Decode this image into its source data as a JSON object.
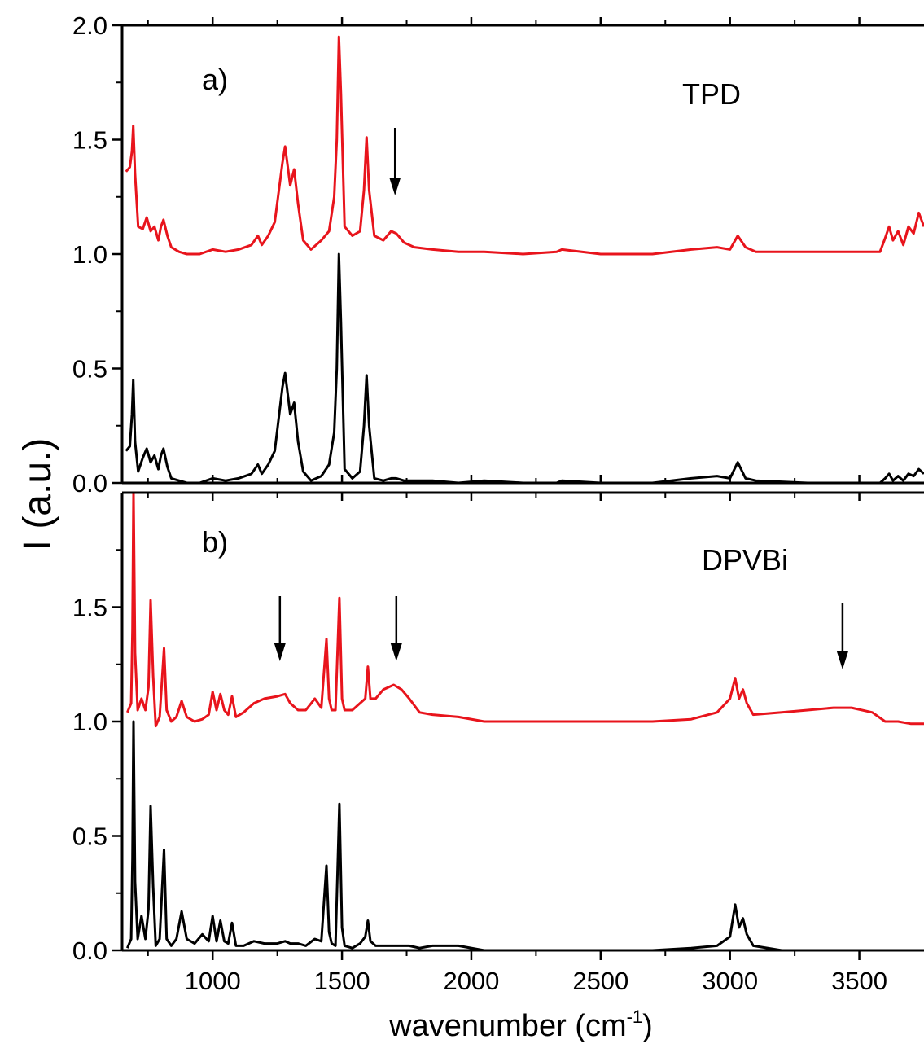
{
  "chart_data": {
    "type": "line",
    "xlabel": "wavenumber (cm⁻¹)",
    "xlabel_main": "wavenumber (cm",
    "xlabel_sup": "-1",
    "xlabel_close": ")",
    "ylabel": "I (a.u.)",
    "xlim": [
      650,
      3750
    ],
    "xticks": [
      1000,
      1500,
      2000,
      2500,
      3000,
      3500
    ],
    "xtick_labels": [
      "1000",
      "1500",
      "2000",
      "2500",
      "3000",
      "3500"
    ],
    "colors": {
      "red": "#e8141c",
      "black": "#000000"
    },
    "panels": [
      {
        "label": "a)",
        "name": "TPD",
        "ylim": [
          0,
          2.0
        ],
        "yticks": [
          0.0,
          0.5,
          1.0,
          1.5,
          2.0
        ],
        "ytick_labels": [
          "0.0",
          "0.5",
          "1.0",
          "1.5",
          "2.0"
        ],
        "arrows": [
          1705
        ],
        "series": [
          {
            "color": "red",
            "x": [
              665,
              680,
              688,
              693,
              700,
              712,
              730,
              745,
              760,
              775,
              790,
              800,
              810,
              825,
              840,
              870,
              900,
              950,
              1000,
              1050,
              1100,
              1150,
              1175,
              1190,
              1215,
              1240,
              1270,
              1280,
              1300,
              1315,
              1330,
              1350,
              1380,
              1420,
              1450,
              1470,
              1480,
              1488,
              1496,
              1510,
              1540,
              1570,
              1585,
              1595,
              1605,
              1625,
              1660,
              1690,
              1710,
              1740,
              1780,
              1850,
              1950,
              2050,
              2200,
              2330,
              2350,
              2500,
              2700,
              2850,
              2950,
              3000,
              3030,
              3060,
              3100,
              3300,
              3500,
              3580,
              3600,
              3615,
              3630,
              3650,
              3670,
              3690,
              3710,
              3730,
              3750
            ],
            "y": [
              1.36,
              1.38,
              1.45,
              1.56,
              1.35,
              1.12,
              1.11,
              1.16,
              1.1,
              1.12,
              1.06,
              1.12,
              1.15,
              1.08,
              1.03,
              1.01,
              1.0,
              1.0,
              1.02,
              1.01,
              1.02,
              1.04,
              1.08,
              1.04,
              1.08,
              1.14,
              1.4,
              1.47,
              1.3,
              1.37,
              1.22,
              1.06,
              1.02,
              1.06,
              1.1,
              1.25,
              1.5,
              1.95,
              1.7,
              1.12,
              1.08,
              1.1,
              1.28,
              1.51,
              1.28,
              1.08,
              1.06,
              1.1,
              1.09,
              1.05,
              1.03,
              1.02,
              1.01,
              1.01,
              1.0,
              1.01,
              1.02,
              1.0,
              1.0,
              1.02,
              1.03,
              1.02,
              1.08,
              1.03,
              1.01,
              1.01,
              1.01,
              1.01,
              1.07,
              1.12,
              1.06,
              1.1,
              1.04,
              1.12,
              1.09,
              1.18,
              1.12
            ]
          },
          {
            "color": "black",
            "x": [
              665,
              680,
              688,
              693,
              700,
              712,
              730,
              745,
              760,
              775,
              790,
              800,
              810,
              825,
              840,
              870,
              900,
              950,
              1000,
              1050,
              1100,
              1150,
              1175,
              1190,
              1215,
              1240,
              1270,
              1280,
              1300,
              1315,
              1330,
              1350,
              1380,
              1420,
              1450,
              1470,
              1480,
              1488,
              1496,
              1510,
              1540,
              1570,
              1585,
              1595,
              1605,
              1625,
              1660,
              1690,
              1710,
              1740,
              1780,
              1850,
              1950,
              2050,
              2200,
              2330,
              2350,
              2500,
              2700,
              2850,
              2950,
              3000,
              3030,
              3060,
              3100,
              3300,
              3500,
              3580,
              3600,
              3615,
              3630,
              3650,
              3670,
              3690,
              3710,
              3730,
              3750
            ],
            "y": [
              0.14,
              0.16,
              0.3,
              0.45,
              0.18,
              0.05,
              0.11,
              0.15,
              0.09,
              0.12,
              0.06,
              0.12,
              0.15,
              0.07,
              0.02,
              0.01,
              0.0,
              0.0,
              0.02,
              0.01,
              0.02,
              0.04,
              0.08,
              0.04,
              0.08,
              0.14,
              0.42,
              0.48,
              0.3,
              0.35,
              0.18,
              0.05,
              0.01,
              0.03,
              0.08,
              0.22,
              0.5,
              1.0,
              0.7,
              0.06,
              0.02,
              0.05,
              0.25,
              0.47,
              0.25,
              0.02,
              0.01,
              0.02,
              0.02,
              0.01,
              0.01,
              0.01,
              0.0,
              0.01,
              0.0,
              0.0,
              0.01,
              0.0,
              0.0,
              0.02,
              0.03,
              0.02,
              0.09,
              0.02,
              0.01,
              0.0,
              0.0,
              0.0,
              0.02,
              0.04,
              0.01,
              0.03,
              0.01,
              0.04,
              0.03,
              0.06,
              0.04
            ]
          }
        ]
      },
      {
        "label": "b)",
        "name": "DPVBi",
        "ylim": [
          0,
          2.0
        ],
        "yticks": [
          0.0,
          0.5,
          1.0,
          1.5
        ],
        "ytick_labels": [
          "0.0",
          "0.5",
          "1.0",
          "1.5"
        ],
        "arrows": [
          1260,
          1710,
          3435
        ],
        "series": [
          {
            "color": "red",
            "x": [
              670,
              685,
              690,
              694,
              700,
              710,
              725,
              740,
              752,
              760,
              770,
              780,
              795,
              812,
              822,
              840,
              860,
              880,
              900,
              930,
              960,
              985,
              1000,
              1015,
              1030,
              1045,
              1060,
              1075,
              1090,
              1120,
              1160,
              1200,
              1250,
              1280,
              1300,
              1330,
              1360,
              1395,
              1420,
              1440,
              1450,
              1460,
              1475,
              1490,
              1500,
              1510,
              1540,
              1570,
              1590,
              1600,
              1610,
              1630,
              1660,
              1700,
              1730,
              1760,
              1800,
              1850,
              1950,
              2050,
              2300,
              2500,
              2700,
              2850,
              2950,
              3000,
              3020,
              3035,
              3050,
              3065,
              3090,
              3200,
              3300,
              3400,
              3470,
              3550,
              3600,
              3650,
              3700,
              3750
            ],
            "y": [
              1.04,
              1.08,
              1.4,
              2.0,
              1.3,
              1.05,
              1.1,
              1.05,
              1.15,
              1.53,
              1.2,
              0.98,
              1.02,
              1.32,
              1.05,
              1.0,
              1.02,
              1.09,
              1.02,
              1.0,
              1.01,
              1.03,
              1.13,
              1.05,
              1.12,
              1.05,
              1.03,
              1.11,
              1.02,
              1.04,
              1.08,
              1.1,
              1.11,
              1.12,
              1.08,
              1.05,
              1.05,
              1.1,
              1.06,
              1.36,
              1.1,
              1.05,
              1.05,
              1.54,
              1.1,
              1.05,
              1.05,
              1.08,
              1.1,
              1.24,
              1.1,
              1.1,
              1.14,
              1.16,
              1.14,
              1.1,
              1.04,
              1.03,
              1.02,
              1.0,
              1.0,
              1.0,
              1.0,
              1.01,
              1.04,
              1.1,
              1.19,
              1.1,
              1.14,
              1.08,
              1.03,
              1.04,
              1.05,
              1.06,
              1.06,
              1.04,
              1.0,
              1.0,
              0.99,
              0.99
            ]
          },
          {
            "color": "black",
            "x": [
              670,
              685,
              690,
              694,
              700,
              710,
              725,
              740,
              752,
              760,
              770,
              780,
              795,
              812,
              822,
              840,
              860,
              880,
              900,
              930,
              960,
              985,
              1000,
              1015,
              1030,
              1045,
              1060,
              1075,
              1090,
              1120,
              1160,
              1200,
              1250,
              1280,
              1300,
              1330,
              1360,
              1395,
              1420,
              1440,
              1450,
              1460,
              1475,
              1490,
              1500,
              1510,
              1540,
              1570,
              1590,
              1600,
              1610,
              1630,
              1660,
              1700,
              1730,
              1760,
              1800,
              1850,
              1950,
              2050,
              2300,
              2500,
              2700,
              2850,
              2950,
              3000,
              3020,
              3035,
              3050,
              3065,
              3090,
              3200,
              3300,
              3400,
              3470,
              3550,
              3600,
              3650,
              3700,
              3750
            ],
            "y": [
              0.01,
              0.05,
              0.4,
              1.0,
              0.3,
              0.05,
              0.15,
              0.05,
              0.18,
              0.63,
              0.28,
              0.02,
              0.05,
              0.44,
              0.05,
              0.02,
              0.05,
              0.17,
              0.05,
              0.03,
              0.07,
              0.04,
              0.15,
              0.04,
              0.13,
              0.04,
              0.03,
              0.12,
              0.02,
              0.02,
              0.04,
              0.03,
              0.03,
              0.04,
              0.03,
              0.03,
              0.02,
              0.05,
              0.04,
              0.37,
              0.08,
              0.03,
              0.02,
              0.64,
              0.1,
              0.02,
              0.01,
              0.03,
              0.06,
              0.13,
              0.04,
              0.02,
              0.02,
              0.02,
              0.02,
              0.02,
              0.01,
              0.02,
              0.02,
              0.0,
              0.0,
              0.0,
              0.0,
              0.01,
              0.02,
              0.06,
              0.2,
              0.1,
              0.14,
              0.07,
              0.02,
              0.0,
              0.0,
              0.0,
              0.0,
              0.0,
              0.0,
              0.0,
              0.0,
              0.0
            ]
          }
        ]
      }
    ]
  }
}
